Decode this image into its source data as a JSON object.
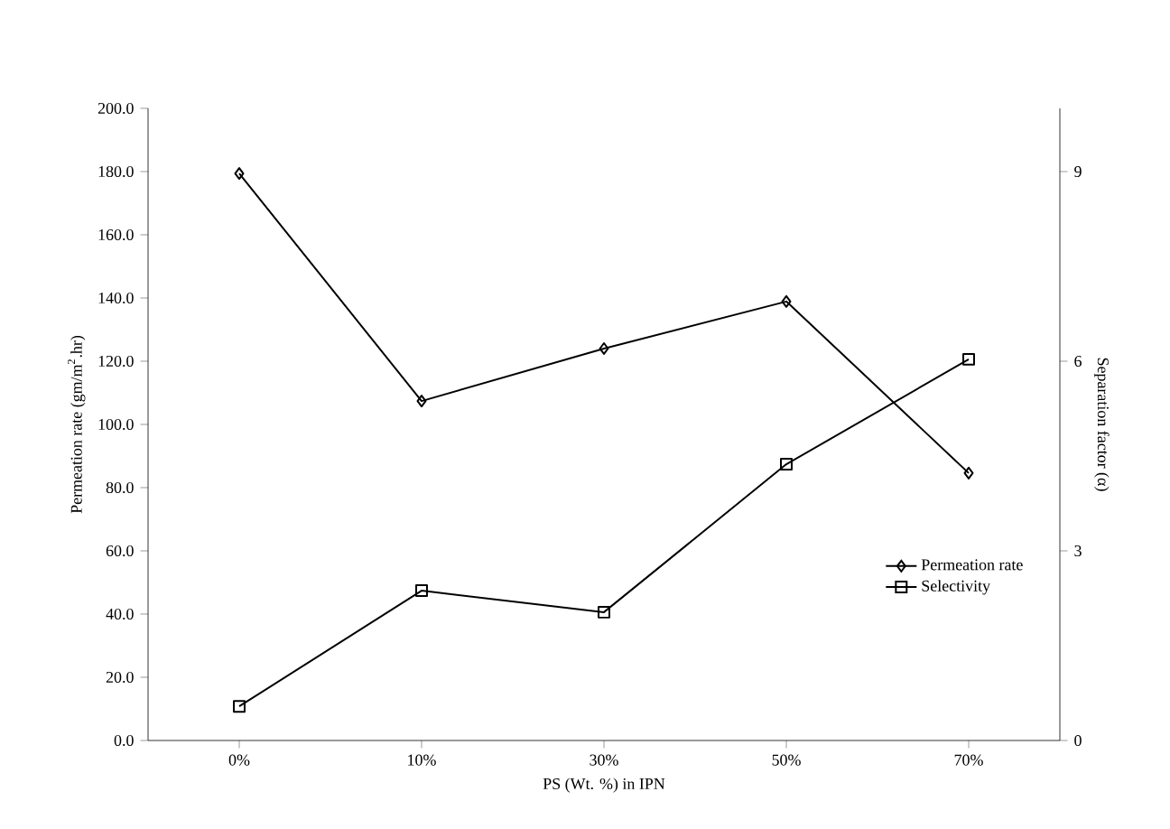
{
  "chart_data": {
    "type": "line",
    "categories": [
      "0%",
      "10%",
      "30%",
      "50%",
      "70%"
    ],
    "xlabel": "PS (Wt. %) in IPN",
    "ylabel": "Permeation rate (gm/m$^{2}$.hr)",
    "y2label": "Separation factor (α)",
    "series": [
      {
        "name": "Permeation rate",
        "color": "#000000",
        "marker": "diamond",
        "values": [
          179.4,
          107.4,
          124,
          138.9,
          84.6
        ]
      },
      {
        "name": "Selectivity",
        "color": "#000000",
        "marker": "square",
        "axis": "y2",
        "values": [
          0.54,
          2.37,
          2.03,
          4.37,
          6.03
        ]
      }
    ],
    "ylim": [
      0,
      200
    ],
    "yticks": [
      {
        "value": 0,
        "label": "0.0"
      },
      {
        "value": 20,
        "label": "20.0"
      },
      {
        "value": 40,
        "label": "40.0"
      },
      {
        "value": 60,
        "label": "60.0"
      },
      {
        "value": 80,
        "label": "80.0"
      },
      {
        "value": 100,
        "label": "100.0"
      },
      {
        "value": 120,
        "label": "120.0"
      },
      {
        "value": 140,
        "label": "140.0"
      },
      {
        "value": 160,
        "label": "160.0"
      },
      {
        "value": 180,
        "label": "180.0"
      },
      {
        "value": 200,
        "label": "200.0"
      }
    ],
    "y2lim": [
      0,
      10
    ],
    "y2ticks": [
      0,
      3,
      6,
      9
    ],
    "legend": "bottom right",
    "line_style": "solid",
    "grid": false
  }
}
